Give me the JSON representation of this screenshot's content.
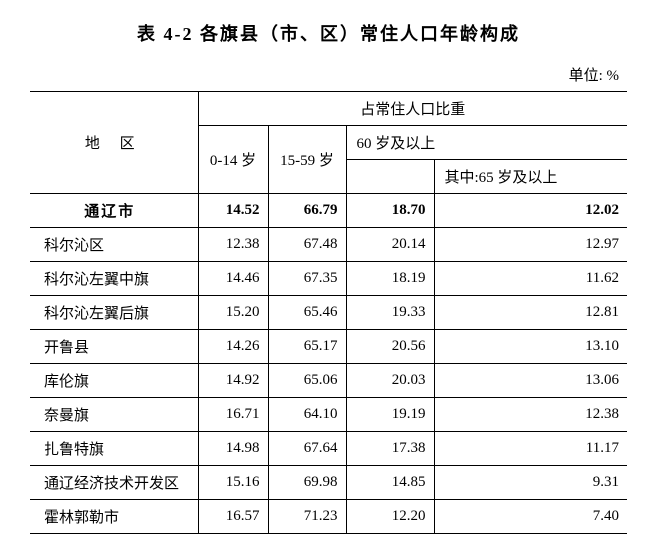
{
  "title": "表 4-2  各旗县（市、区）常住人口年龄构成",
  "unit": "单位: %",
  "headers": {
    "region": "地  区",
    "proportion": "占常住人口比重",
    "age_0_14": "0-14 岁",
    "age_15_59": "15-59 岁",
    "age_60_plus": "60 岁及以上",
    "age_65_plus": "其中:65 岁及以上"
  },
  "rows": [
    {
      "region": "通辽市",
      "c1": "14.52",
      "c2": "66.79",
      "c3": "18.70",
      "c4": "12.02",
      "bold": true
    },
    {
      "region": "科尔沁区",
      "c1": "12.38",
      "c2": "67.48",
      "c3": "20.14",
      "c4": "12.97",
      "bold": false
    },
    {
      "region": "科尔沁左翼中旗",
      "c1": "14.46",
      "c2": "67.35",
      "c3": "18.19",
      "c4": "11.62",
      "bold": false
    },
    {
      "region": "科尔沁左翼后旗",
      "c1": "15.20",
      "c2": "65.46",
      "c3": "19.33",
      "c4": "12.81",
      "bold": false
    },
    {
      "region": "开鲁县",
      "c1": "14.26",
      "c2": "65.17",
      "c3": "20.56",
      "c4": "13.10",
      "bold": false
    },
    {
      "region": "库伦旗",
      "c1": "14.92",
      "c2": "65.06",
      "c3": "20.03",
      "c4": "13.06",
      "bold": false
    },
    {
      "region": "奈曼旗",
      "c1": "16.71",
      "c2": "64.10",
      "c3": "19.19",
      "c4": "12.38",
      "bold": false
    },
    {
      "region": "扎鲁特旗",
      "c1": "14.98",
      "c2": "67.64",
      "c3": "17.38",
      "c4": "11.17",
      "bold": false
    },
    {
      "region": "通辽经济技术开发区",
      "c1": "15.16",
      "c2": "69.98",
      "c3": "14.85",
      "c4": "9.31",
      "bold": false
    },
    {
      "region": "霍林郭勒市",
      "c1": "16.57",
      "c2": "71.23",
      "c3": "12.20",
      "c4": "7.40",
      "bold": false
    }
  ],
  "column_widths": {
    "region": "168px",
    "c1": "70px",
    "c2": "78px",
    "c3": "88px",
    "c4": "auto"
  }
}
